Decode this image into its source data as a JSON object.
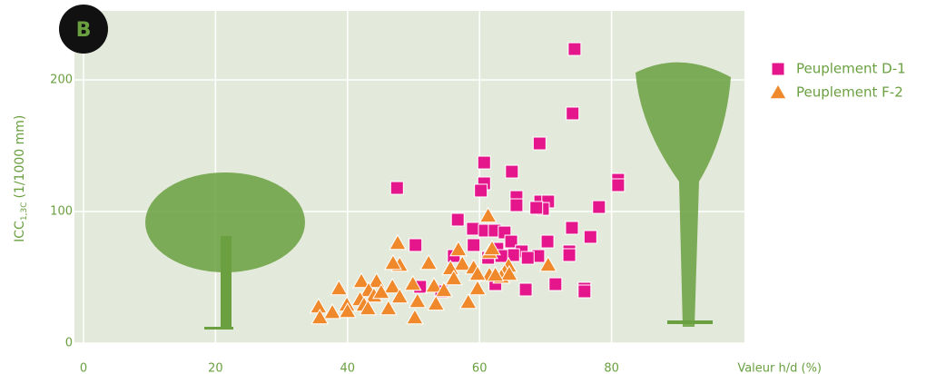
{
  "panel_label": "B",
  "chart_data": {
    "type": "scatter",
    "xlabel": "Valeur h/d (%)",
    "ylabel": {
      "main": "ICC",
      "sub": "1,3C",
      "unit": "(1/1000 mm)"
    },
    "xlim": [
      0,
      100
    ],
    "xticks": [
      0,
      20,
      40,
      60,
      80
    ],
    "ylim": [
      0,
      250
    ],
    "yticks": [
      0,
      100,
      200
    ],
    "grid": true,
    "legend": "upper right",
    "series": [
      {
        "name": "Peuplement D-1",
        "color": "#e5168c",
        "marker": "square",
        "x": [
          74.4,
          74.1,
          69.1,
          60.7,
          64.9,
          60.7,
          60.2,
          81.0,
          81.0,
          47.5,
          65.6,
          65.6,
          69.2,
          70.4,
          69.6,
          78.1,
          68.6,
          56.7,
          74.0,
          59.0,
          60.8,
          62.3,
          63.8,
          76.8,
          64.8,
          70.3,
          59.1,
          50.3,
          62.7,
          66.4,
          73.6,
          73.6,
          65.1,
          63.3,
          68.9,
          67.3,
          56.1,
          61.3,
          62.4,
          71.5,
          67.0,
          75.9,
          75.9,
          54.2,
          51.0
        ],
        "values": [
          223.4,
          174.5,
          151.7,
          137.2,
          130.3,
          121.4,
          115.9,
          124.1,
          120.0,
          117.9,
          111.0,
          104.8,
          107.6,
          107.6,
          102.0,
          103.4,
          102.8,
          93.8,
          87.6,
          86.9,
          85.5,
          85.5,
          84.1,
          80.7,
          77.2,
          77.2,
          74.5,
          74.5,
          71.7,
          69.7,
          69.7,
          66.9,
          66.9,
          66.2,
          66.2,
          64.8,
          66.2,
          64.8,
          44.8,
          44.8,
          40.7,
          41.4,
          39.3,
          39.3,
          42.8
        ]
      },
      {
        "name": "Peuplement F-2",
        "color": "#f0892b",
        "marker": "triangle",
        "x": [
          61.3,
          47.6,
          56.8,
          61.5,
          61.9,
          47.9,
          46.9,
          52.3,
          57.4,
          59.1,
          55.6,
          64.4,
          63.8,
          61.5,
          59.7,
          63.3,
          64.5,
          62.4,
          70.4,
          56.1,
          42.1,
          44.4,
          46.8,
          49.9,
          53.1,
          54.6,
          59.7,
          38.7,
          43.2,
          44.0,
          47.9,
          41.9,
          50.6,
          53.4,
          58.3,
          35.6,
          39.9,
          42.5,
          43.1,
          46.2,
          37.7,
          40.0,
          35.8,
          50.2,
          45.1
        ],
        "values": [
          96.6,
          75.9,
          71.0,
          69.0,
          71.7,
          59.3,
          60.7,
          60.7,
          60.0,
          57.2,
          56.6,
          58.6,
          53.8,
          51.7,
          52.4,
          50.3,
          52.4,
          51.7,
          59.3,
          49.0,
          46.9,
          46.9,
          42.8,
          44.8,
          43.4,
          40.0,
          41.4,
          41.4,
          40.0,
          35.9,
          35.2,
          33.1,
          31.7,
          29.7,
          31.0,
          27.6,
          29.0,
          29.0,
          26.2,
          26.2,
          23.4,
          24.1,
          19.3,
          19.3,
          38.6
        ]
      }
    ]
  }
}
